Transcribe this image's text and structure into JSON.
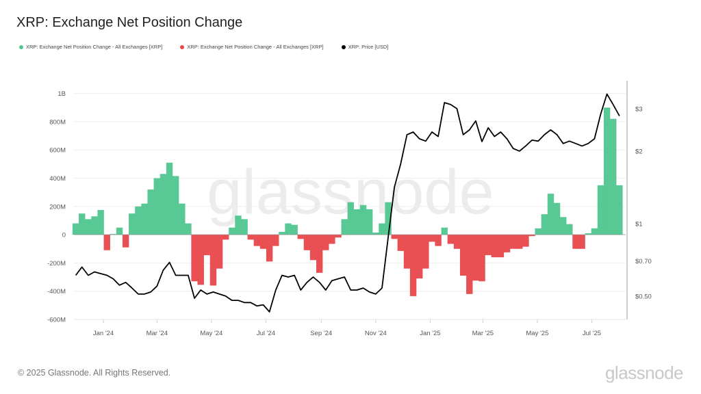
{
  "title": "XRP: Exchange Net Position Change",
  "legend": [
    {
      "label": "XRP: Exchange Net Position Change - All Exchanges [XRP]",
      "color": "#4fc68f"
    },
    {
      "label": "XRP: Exchange Net Position Change - All Exchanges [XRP]",
      "color": "#e8474a"
    },
    {
      "label": "XRP: Price [USD]",
      "color": "#000000"
    }
  ],
  "footer": "© 2025 Glassnode. All Rights Reserved.",
  "logo": "glassnode",
  "watermark": "glassnode",
  "chart_data": {
    "type": "bar+line",
    "title": "XRP: Exchange Net Position Change",
    "x_range": [
      "2023-11-29",
      "2025-08-08"
    ],
    "x_ticks": [
      {
        "date": "2024-01-01",
        "label": "Jan '24"
      },
      {
        "date": "2024-03-01",
        "label": "Mar '24"
      },
      {
        "date": "2024-05-01",
        "label": "May '24"
      },
      {
        "date": "2024-07-01",
        "label": "Jul '24"
      },
      {
        "date": "2024-09-01",
        "label": "Sep '24"
      },
      {
        "date": "2024-11-01",
        "label": "Nov '24"
      },
      {
        "date": "2025-01-01",
        "label": "Jan '25"
      },
      {
        "date": "2025-03-01",
        "label": "Mar '25"
      },
      {
        "date": "2025-05-01",
        "label": "May '25"
      },
      {
        "date": "2025-07-01",
        "label": "Jul '25"
      }
    ],
    "y_left": {
      "unit": "XRP (millions)",
      "lim": [
        -600,
        1090
      ],
      "grid": true,
      "ticks": [
        {
          "v": 1000,
          "label": "1B"
        },
        {
          "v": 800,
          "label": "800M"
        },
        {
          "v": 600,
          "label": "600M"
        },
        {
          "v": 400,
          "label": "400M"
        },
        {
          "v": 200,
          "label": "200M"
        },
        {
          "v": 0,
          "label": "0"
        },
        {
          "v": -200,
          "label": "-200M"
        },
        {
          "v": -400,
          "label": "-400M"
        },
        {
          "v": -600,
          "label": "-600M"
        }
      ]
    },
    "y_right": {
      "unit": "USD",
      "scale": "log",
      "lim": [
        0.4,
        3.92
      ],
      "ticks": [
        {
          "v": 3,
          "label": "$3"
        },
        {
          "v": 2,
          "label": "$2"
        },
        {
          "v": 1,
          "label": "$1"
        },
        {
          "v": 0.7,
          "label": "$0.70"
        },
        {
          "v": 0.5,
          "label": "$0.50"
        }
      ]
    },
    "dates": [
      "2023-12-01",
      "2023-12-08",
      "2023-12-15",
      "2023-12-22",
      "2023-12-29",
      "2024-01-05",
      "2024-01-12",
      "2024-01-19",
      "2024-01-26",
      "2024-02-02",
      "2024-02-09",
      "2024-02-16",
      "2024-02-23",
      "2024-03-01",
      "2024-03-08",
      "2024-03-15",
      "2024-03-22",
      "2024-03-29",
      "2024-04-05",
      "2024-04-12",
      "2024-04-19",
      "2024-04-26",
      "2024-05-03",
      "2024-05-10",
      "2024-05-17",
      "2024-05-24",
      "2024-05-31",
      "2024-06-07",
      "2024-06-14",
      "2024-06-21",
      "2024-06-28",
      "2024-07-05",
      "2024-07-12",
      "2024-07-19",
      "2024-07-26",
      "2024-08-02",
      "2024-08-09",
      "2024-08-16",
      "2024-08-23",
      "2024-08-30",
      "2024-09-06",
      "2024-09-13",
      "2024-09-20",
      "2024-09-27",
      "2024-10-04",
      "2024-10-11",
      "2024-10-18",
      "2024-10-25",
      "2024-11-01",
      "2024-11-08",
      "2024-11-15",
      "2024-11-22",
      "2024-11-29",
      "2024-12-06",
      "2024-12-13",
      "2024-12-20",
      "2024-12-27",
      "2025-01-03",
      "2025-01-10",
      "2025-01-17",
      "2025-01-24",
      "2025-01-31",
      "2025-02-07",
      "2025-02-14",
      "2025-02-21",
      "2025-02-28",
      "2025-03-07",
      "2025-03-14",
      "2025-03-21",
      "2025-03-28",
      "2025-04-04",
      "2025-04-11",
      "2025-04-18",
      "2025-04-25",
      "2025-05-02",
      "2025-05-09",
      "2025-05-16",
      "2025-05-23",
      "2025-05-30",
      "2025-06-06",
      "2025-06-13",
      "2025-06-20",
      "2025-06-27",
      "2025-07-04",
      "2025-07-11",
      "2025-07-18",
      "2025-07-25",
      "2025-08-01"
    ],
    "series": [
      {
        "name": "XRP: Exchange Net Position Change - All Exchanges [XRP]",
        "unit": "M XRP",
        "type": "bar",
        "color_positive": "#4fc68f",
        "color_negative": "#e8474a",
        "values": [
          80,
          150,
          110,
          130,
          175,
          -110,
          5,
          50,
          -90,
          150,
          200,
          220,
          320,
          400,
          430,
          510,
          415,
          220,
          80,
          -330,
          -355,
          -145,
          -360,
          -240,
          -35,
          50,
          135,
          110,
          -35,
          -80,
          -100,
          -190,
          -80,
          20,
          80,
          70,
          -30,
          -110,
          -180,
          -270,
          -110,
          -65,
          -20,
          110,
          230,
          180,
          210,
          180,
          15,
          80,
          230,
          -30,
          -115,
          -240,
          -435,
          -310,
          -240,
          -50,
          -80,
          50,
          -65,
          -100,
          -290,
          -420,
          -325,
          -330,
          -145,
          -160,
          -160,
          -125,
          -100,
          -100,
          -85,
          -10,
          45,
          145,
          290,
          225,
          125,
          75,
          -100,
          -100,
          10,
          45,
          350,
          900,
          820,
          350
        ]
      },
      {
        "name": "XRP: Price [USD]",
        "unit": "USD",
        "type": "line",
        "color": "#000000",
        "values": [
          0.61,
          0.66,
          0.61,
          0.63,
          0.62,
          0.61,
          0.59,
          0.555,
          0.57,
          0.54,
          0.51,
          0.51,
          0.52,
          0.55,
          0.64,
          0.69,
          0.61,
          0.61,
          0.61,
          0.49,
          0.53,
          0.51,
          0.52,
          0.51,
          0.5,
          0.48,
          0.48,
          0.47,
          0.47,
          0.455,
          0.46,
          0.43,
          0.53,
          0.61,
          0.6,
          0.61,
          0.53,
          0.57,
          0.6,
          0.57,
          0.53,
          0.58,
          0.59,
          0.6,
          0.53,
          0.53,
          0.54,
          0.52,
          0.51,
          0.54,
          0.88,
          1.42,
          1.77,
          2.34,
          2.4,
          2.25,
          2.2,
          2.4,
          2.3,
          3.18,
          3.12,
          3.0,
          2.34,
          2.45,
          2.67,
          2.19,
          2.5,
          2.3,
          2.4,
          2.25,
          2.05,
          2.0,
          2.1,
          2.22,
          2.2,
          2.34,
          2.45,
          2.34,
          2.15,
          2.2,
          2.15,
          2.1,
          2.15,
          2.25,
          2.85,
          3.45,
          3.12,
          2.8
        ]
      }
    ]
  }
}
